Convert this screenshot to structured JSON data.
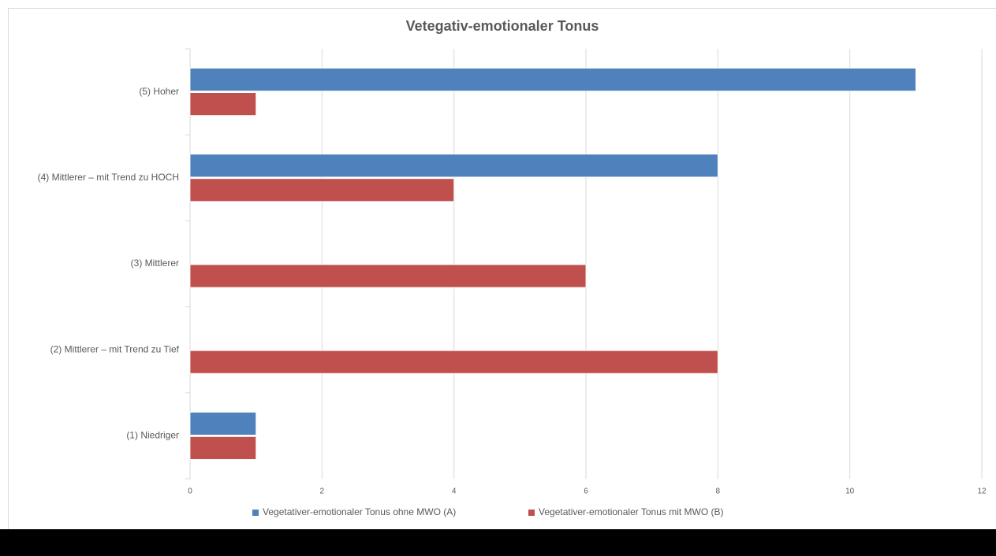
{
  "chart_data": {
    "type": "bar",
    "orientation": "horizontal",
    "title": "Vetegativ-emotionaler Tonus",
    "categories": [
      "(5) Hoher",
      "(4) Mittlerer – mit Trend zu HOCH",
      "(3) Mittlerer",
      "(2) Mittlerer – mit Trend zu Tief",
      "(1) Niedriger"
    ],
    "series": [
      {
        "name": "Vegetativer-emotionaler Tonus ohne MWO (A)",
        "color": "#4f81bd",
        "values": [
          11,
          8,
          0,
          0,
          1
        ]
      },
      {
        "name": "Vegetativer-emotionaler Tonus mit MWO (B)",
        "color": "#c0504d",
        "values": [
          1,
          4,
          6,
          8,
          1
        ]
      }
    ],
    "xlim": [
      0,
      12
    ],
    "xticks": [
      0,
      2,
      4,
      6,
      8,
      10,
      12
    ],
    "grid": true,
    "legend": "bottom"
  }
}
